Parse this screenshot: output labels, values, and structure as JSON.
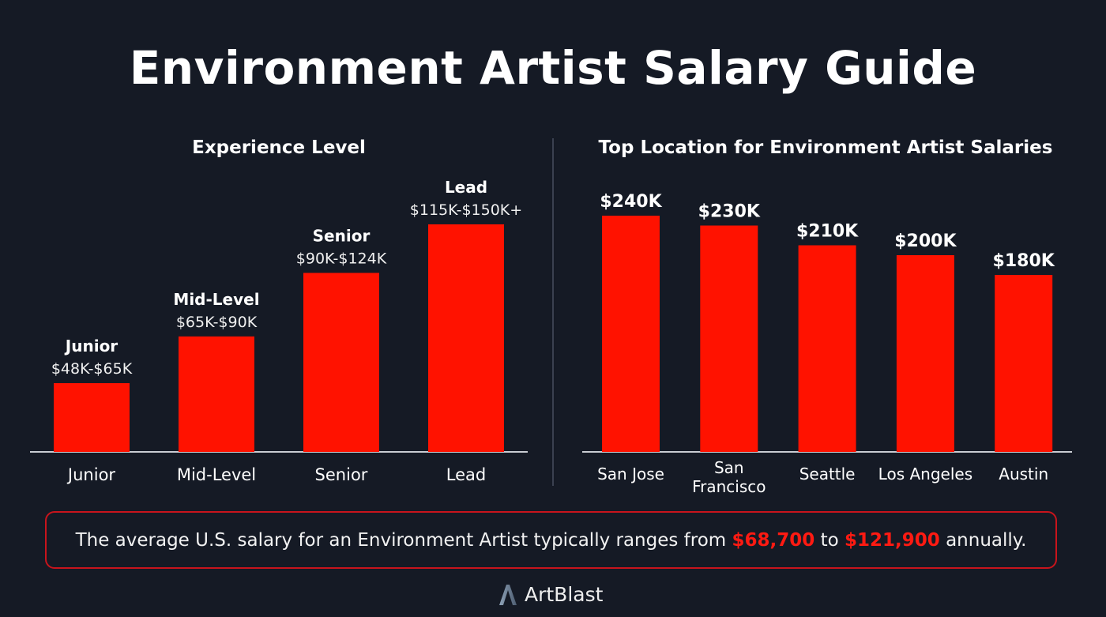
{
  "title": "Environment Artist Salary Guide",
  "colors": {
    "bar": "#ff1200",
    "background": "#151a25",
    "highlight": "#ff1a12"
  },
  "chart_data": [
    {
      "type": "bar",
      "title": "Experience Level",
      "categories": [
        "Junior",
        "Mid-Level",
        "Senior",
        "Lead"
      ],
      "ranges": [
        [
          48,
          65
        ],
        [
          65,
          90
        ],
        [
          90,
          124
        ],
        [
          115,
          150
        ]
      ],
      "data_labels": [
        {
          "name": "Junior",
          "range": "$48K-$65K"
        },
        {
          "name": "Mid-Level",
          "range": "$65K-$90K"
        },
        {
          "name": "Senior",
          "range": "$90K-$124K"
        },
        {
          "name": "Lead",
          "range": "$115K-$150K+"
        }
      ],
      "unit": "K USD"
    },
    {
      "type": "bar",
      "title": "Top Location for Environment Artist Salaries",
      "categories": [
        "San Jose",
        "San Francisco",
        "Seattle",
        "Los Angeles",
        "Austin"
      ],
      "values": [
        240,
        230,
        210,
        200,
        180
      ],
      "data_labels": [
        "$240K",
        "$230K",
        "$210K",
        "$200K",
        "$180K"
      ],
      "unit": "K USD"
    }
  ],
  "note": {
    "before": "The average U.S. salary for an Environment Artist typically ranges from ",
    "low": "$68,700",
    "mid": " to ",
    "high": "$121,900",
    "after": " annually."
  },
  "brand": {
    "name": "ArtBlast",
    "icon": "a-logo-icon"
  }
}
